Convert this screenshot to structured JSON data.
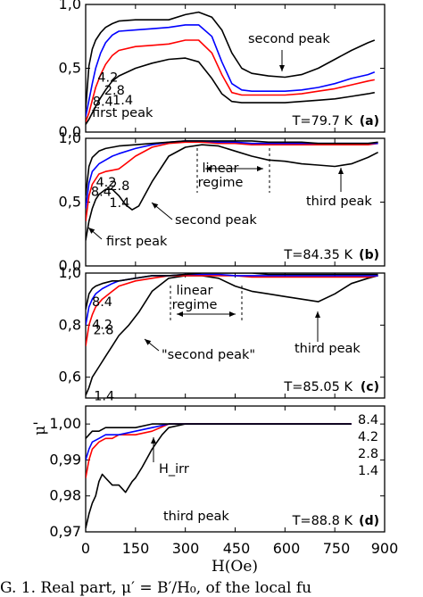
{
  "figure": {
    "xlabel": "H(Oe)",
    "ylabel": "μ'",
    "xticks": [
      "0",
      "150",
      "300",
      "450",
      "600",
      "750",
      "900"
    ],
    "caption": "G. 1.      Real part,  μ′ = B′/H₀,  of the local fu"
  },
  "chart_data": [
    {
      "type": "line",
      "panel": "(a)",
      "temperature": "T=79.7 K",
      "xlim": [
        0,
        900
      ],
      "ylim": [
        0.0,
        1.0
      ],
      "yticks": [
        "0,0",
        "0,5",
        "1,0"
      ],
      "annotations": [
        "second peak",
        "first peak"
      ],
      "series": [
        {
          "name": "8.4",
          "color": "#000000",
          "x": [
            0,
            10,
            20,
            30,
            45,
            60,
            80,
            100,
            150,
            200,
            250,
            300,
            340,
            380,
            410,
            440,
            470,
            500,
            550,
            600,
            650,
            700,
            750,
            800,
            850,
            870
          ],
          "y": [
            0.18,
            0.52,
            0.65,
            0.72,
            0.78,
            0.82,
            0.85,
            0.87,
            0.88,
            0.88,
            0.88,
            0.92,
            0.94,
            0.9,
            0.8,
            0.62,
            0.5,
            0.46,
            0.44,
            0.43,
            0.45,
            0.5,
            0.57,
            0.64,
            0.7,
            0.72
          ]
        },
        {
          "name": "4.2",
          "color": "#0000ff",
          "x": [
            0,
            10,
            20,
            30,
            45,
            60,
            80,
            100,
            150,
            200,
            250,
            300,
            340,
            380,
            410,
            440,
            470,
            500,
            550,
            600,
            650,
            700,
            750,
            800,
            850,
            870
          ],
          "y": [
            0.12,
            0.25,
            0.38,
            0.5,
            0.62,
            0.7,
            0.76,
            0.79,
            0.8,
            0.81,
            0.82,
            0.84,
            0.84,
            0.75,
            0.55,
            0.38,
            0.33,
            0.32,
            0.32,
            0.32,
            0.33,
            0.35,
            0.38,
            0.42,
            0.45,
            0.47
          ]
        },
        {
          "name": "2.8",
          "color": "#ff0000",
          "x": [
            0,
            10,
            20,
            30,
            45,
            60,
            80,
            100,
            150,
            200,
            250,
            300,
            340,
            380,
            410,
            440,
            470,
            500,
            550,
            600,
            650,
            700,
            750,
            800,
            850,
            870
          ],
          "y": [
            0.08,
            0.15,
            0.25,
            0.35,
            0.45,
            0.53,
            0.6,
            0.64,
            0.67,
            0.68,
            0.69,
            0.72,
            0.72,
            0.62,
            0.45,
            0.31,
            0.29,
            0.29,
            0.29,
            0.29,
            0.3,
            0.32,
            0.34,
            0.37,
            0.4,
            0.41
          ]
        },
        {
          "name": "1.4",
          "color": "#000000",
          "x": [
            0,
            10,
            20,
            30,
            45,
            60,
            80,
            100,
            150,
            200,
            250,
            300,
            340,
            380,
            410,
            440,
            470,
            500,
            550,
            600,
            650,
            700,
            750,
            800,
            850,
            870
          ],
          "y": [
            0.06,
            0.1,
            0.15,
            0.2,
            0.27,
            0.33,
            0.4,
            0.44,
            0.5,
            0.54,
            0.57,
            0.58,
            0.55,
            0.42,
            0.3,
            0.24,
            0.23,
            0.23,
            0.23,
            0.23,
            0.24,
            0.25,
            0.26,
            0.28,
            0.3,
            0.31
          ]
        }
      ],
      "labels": [
        "8.4",
        "4.2",
        "2.8",
        "1.4"
      ]
    },
    {
      "type": "line",
      "panel": "(b)",
      "temperature": "T=84.35 K",
      "xlim": [
        0,
        900
      ],
      "ylim": [
        0.0,
        1.0
      ],
      "yticks": [
        "0,0",
        "0,5",
        "1,0"
      ],
      "annotations": [
        "linear",
        "regime",
        "third peak",
        "second peak",
        "first peak"
      ],
      "series": [
        {
          "name": "8.4",
          "color": "#000000",
          "x": [
            0,
            10,
            20,
            40,
            60,
            80,
            100,
            150,
            200,
            250,
            300,
            350,
            400,
            450,
            500,
            550,
            600,
            650,
            700,
            750,
            800,
            850,
            880
          ],
          "y": [
            0.55,
            0.78,
            0.85,
            0.9,
            0.92,
            0.93,
            0.94,
            0.95,
            0.96,
            0.97,
            0.98,
            0.98,
            0.98,
            0.98,
            0.98,
            0.97,
            0.97,
            0.97,
            0.96,
            0.96,
            0.96,
            0.96,
            0.97
          ]
        },
        {
          "name": "4.2",
          "color": "#0000ff",
          "x": [
            0,
            10,
            20,
            40,
            60,
            80,
            100,
            150,
            200,
            250,
            300,
            350,
            400,
            450,
            500,
            550,
            600,
            650,
            700,
            750,
            800,
            850,
            880
          ],
          "y": [
            0.45,
            0.65,
            0.74,
            0.8,
            0.83,
            0.86,
            0.88,
            0.92,
            0.95,
            0.97,
            0.98,
            0.98,
            0.97,
            0.97,
            0.96,
            0.96,
            0.96,
            0.96,
            0.96,
            0.96,
            0.96,
            0.96,
            0.96
          ]
        },
        {
          "name": "2.8",
          "color": "#ff0000",
          "x": [
            0,
            10,
            20,
            40,
            60,
            80,
            100,
            120,
            150,
            200,
            250,
            300,
            350,
            400,
            450,
            500,
            550,
            600,
            650,
            700,
            750,
            800,
            850,
            880
          ],
          "y": [
            0.35,
            0.55,
            0.64,
            0.72,
            0.74,
            0.75,
            0.76,
            0.8,
            0.86,
            0.93,
            0.96,
            0.97,
            0.97,
            0.96,
            0.96,
            0.95,
            0.95,
            0.95,
            0.95,
            0.95,
            0.95,
            0.95,
            0.95,
            0.96
          ]
        },
        {
          "name": "1.4",
          "color": "#000000",
          "x": [
            0,
            10,
            20,
            30,
            40,
            60,
            80,
            100,
            120,
            140,
            160,
            200,
            250,
            300,
            350,
            400,
            450,
            500,
            550,
            600,
            650,
            700,
            750,
            800,
            850,
            880
          ],
          "y": [
            0.2,
            0.35,
            0.45,
            0.52,
            0.56,
            0.6,
            0.6,
            0.55,
            0.48,
            0.44,
            0.47,
            0.66,
            0.86,
            0.93,
            0.95,
            0.94,
            0.9,
            0.86,
            0.83,
            0.82,
            0.8,
            0.79,
            0.78,
            0.8,
            0.85,
            0.89
          ]
        }
      ],
      "labels": [
        "8.4",
        "4.2",
        "2.8",
        "1.4"
      ]
    },
    {
      "type": "line",
      "panel": "(c)",
      "temperature": "T=85.05 K",
      "xlim": [
        0,
        900
      ],
      "ylim": [
        0.52,
        1.0
      ],
      "yticks": [
        "0,6",
        "0,8",
        "1,0"
      ],
      "annotations": [
        "linear",
        "regime",
        "\"second peak\"",
        "third peak"
      ],
      "series": [
        {
          "name": "8.4",
          "color": "#000000",
          "x": [
            0,
            10,
            20,
            30,
            50,
            80,
            100,
            150,
            200,
            250,
            300,
            350,
            400,
            450,
            500,
            550,
            600,
            650,
            700,
            750,
            800,
            850,
            880
          ],
          "y": [
            0.86,
            0.92,
            0.94,
            0.95,
            0.96,
            0.97,
            0.97,
            0.98,
            0.99,
            0.99,
            0.995,
            1.0,
            1.0,
            1.0,
            1.0,
            0.995,
            0.995,
            0.995,
            0.995,
            0.995,
            0.995,
            0.995,
            0.995
          ]
        },
        {
          "name": "4.2",
          "color": "#0000ff",
          "x": [
            0,
            10,
            20,
            30,
            50,
            80,
            100,
            150,
            200,
            250,
            300,
            350,
            400,
            450,
            500,
            550,
            600,
            650,
            700,
            750,
            800,
            850,
            880
          ],
          "y": [
            0.8,
            0.87,
            0.9,
            0.92,
            0.94,
            0.96,
            0.97,
            0.98,
            0.99,
            0.99,
            0.995,
            0.995,
            0.995,
            0.99,
            0.99,
            0.99,
            0.99,
            0.99,
            0.99,
            0.99,
            0.99,
            0.99,
            0.99
          ]
        },
        {
          "name": "2.8",
          "color": "#ff0000",
          "x": [
            0,
            10,
            20,
            30,
            50,
            80,
            100,
            150,
            200,
            250,
            300,
            350,
            400,
            450,
            500,
            550,
            600,
            650,
            700,
            750,
            800,
            850,
            880
          ],
          "y": [
            0.72,
            0.8,
            0.84,
            0.87,
            0.9,
            0.93,
            0.95,
            0.97,
            0.98,
            0.99,
            0.99,
            0.99,
            0.99,
            0.99,
            0.985,
            0.985,
            0.985,
            0.985,
            0.985,
            0.985,
            0.985,
            0.985,
            0.99
          ]
        },
        {
          "name": "1.4",
          "color": "#000000",
          "x": [
            0,
            10,
            20,
            40,
            60,
            80,
            100,
            130,
            160,
            200,
            250,
            300,
            350,
            400,
            450,
            500,
            550,
            600,
            650,
            700,
            750,
            800,
            850,
            880
          ],
          "y": [
            0.53,
            0.56,
            0.6,
            0.64,
            0.68,
            0.72,
            0.76,
            0.8,
            0.85,
            0.93,
            0.98,
            0.99,
            0.99,
            0.98,
            0.95,
            0.93,
            0.92,
            0.91,
            0.9,
            0.89,
            0.92,
            0.96,
            0.98,
            0.99
          ]
        }
      ],
      "labels": [
        "8.4",
        "4.2",
        "2.8",
        "1.4"
      ]
    },
    {
      "type": "line",
      "panel": "(d)",
      "temperature": "T=88.8 K",
      "xlim": [
        0,
        900
      ],
      "ylim": [
        0.97,
        1.005
      ],
      "yticks": [
        "0,97",
        "0,98",
        "0,99",
        "1,00"
      ],
      "annotations": [
        "H_irr",
        "third peak"
      ],
      "series": [
        {
          "name": "8.4",
          "color": "#000000",
          "x": [
            0,
            10,
            20,
            40,
            60,
            80,
            100,
            150,
            200,
            250,
            300,
            350,
            400,
            450,
            500,
            550,
            600,
            650,
            700,
            750,
            800
          ],
          "y": [
            0.996,
            0.997,
            0.998,
            0.998,
            0.999,
            0.999,
            0.999,
            0.999,
            1.0,
            1.0,
            1.0,
            1.0,
            1.0,
            1.0,
            1.0,
            1.0,
            1.0,
            1.0,
            1.0,
            1.0,
            1.0
          ]
        },
        {
          "name": "4.2",
          "color": "#0000ff",
          "x": [
            0,
            10,
            20,
            40,
            60,
            80,
            100,
            150,
            200,
            250,
            300,
            350,
            400,
            450,
            500,
            550,
            600,
            650,
            700,
            750,
            800
          ],
          "y": [
            0.99,
            0.993,
            0.995,
            0.996,
            0.997,
            0.997,
            0.997,
            0.998,
            0.999,
            1.0,
            1.0,
            1.0,
            1.0,
            1.0,
            1.0,
            1.0,
            1.0,
            1.0,
            1.0,
            1.0,
            1.0
          ]
        },
        {
          "name": "2.8",
          "color": "#ff0000",
          "x": [
            0,
            10,
            20,
            40,
            60,
            80,
            100,
            150,
            200,
            250,
            300,
            350,
            400,
            450,
            500,
            550,
            600,
            650,
            700,
            750,
            800
          ],
          "y": [
            0.985,
            0.99,
            0.993,
            0.995,
            0.996,
            0.996,
            0.997,
            0.997,
            0.998,
            1.0,
            1.0,
            1.0,
            1.0,
            1.0,
            1.0,
            1.0,
            1.0,
            1.0,
            1.0,
            1.0,
            1.0
          ]
        },
        {
          "name": "1.4",
          "color": "#000000",
          "x": [
            0,
            10,
            20,
            30,
            40,
            50,
            60,
            80,
            100,
            120,
            140,
            150,
            170,
            200,
            230,
            250,
            300,
            350,
            400,
            450,
            500,
            550,
            600,
            650,
            700,
            750,
            800
          ],
          "y": [
            0.971,
            0.975,
            0.978,
            0.98,
            0.984,
            0.986,
            0.985,
            0.983,
            0.983,
            0.981,
            0.984,
            0.985,
            0.988,
            0.993,
            0.997,
            0.999,
            1.0,
            1.0,
            1.0,
            1.0,
            1.0,
            1.0,
            1.0,
            1.0,
            1.0,
            1.0,
            1.0
          ]
        }
      ],
      "labels": [
        "8.4",
        "4.2",
        "2.8",
        "1.4"
      ]
    }
  ]
}
